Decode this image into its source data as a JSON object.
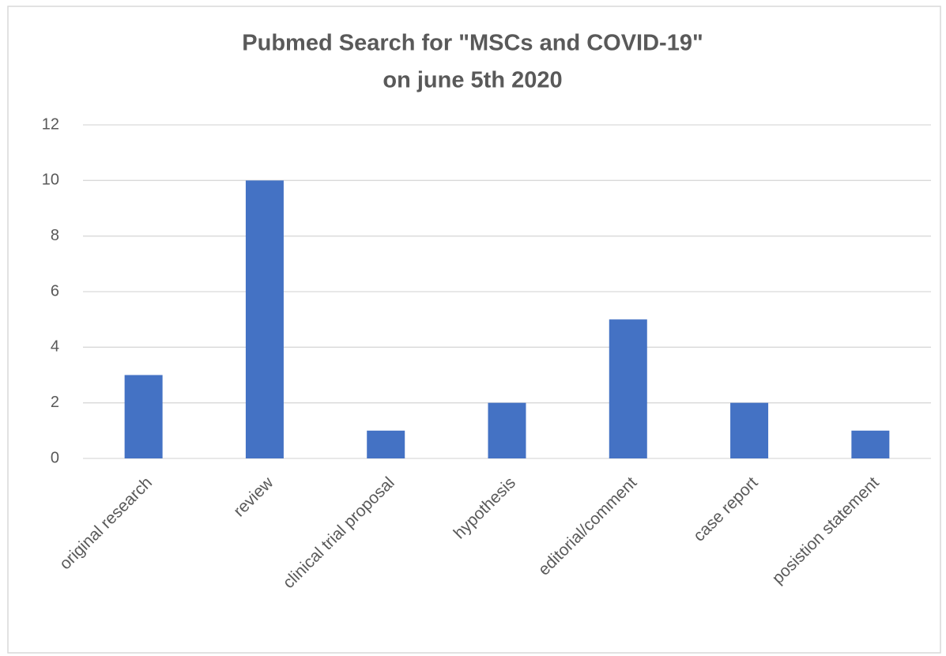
{
  "chart_data": {
    "type": "bar",
    "title": [
      "Pubmed Search for \"MSCs and COVID-19\"",
      "on june 5th  2020"
    ],
    "categories": [
      "original research",
      "review",
      "clinical trial proposal",
      "hypothesis",
      "editorial/comment",
      "case report",
      "posistion statement"
    ],
    "values": [
      3,
      10,
      1,
      2,
      5,
      2,
      1
    ],
    "color": "#4472c4",
    "ylim": [
      0,
      12
    ],
    "yticks": [
      0,
      2,
      4,
      6,
      8,
      10,
      12
    ],
    "grid": true
  }
}
